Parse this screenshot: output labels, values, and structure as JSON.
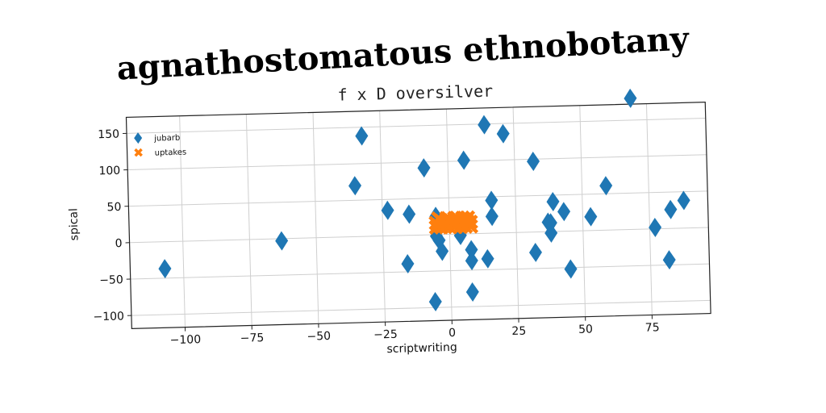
{
  "chart_data": {
    "type": "scatter",
    "suptitle": "agnathostomatous ethnobotany",
    "title": "f x D oversilver",
    "xlabel": "scriptwriting",
    "ylabel": "spical",
    "xlim": [
      -120,
      97
    ],
    "ylim": [
      -118,
      172
    ],
    "xticks": [
      -100,
      -75,
      -50,
      -25,
      0,
      25,
      50,
      75
    ],
    "xtick_labels": [
      "−100",
      "−75",
      "−50",
      "−25",
      "0",
      "25",
      "50",
      "75"
    ],
    "yticks": [
      -100,
      -50,
      0,
      50,
      100,
      150
    ],
    "ytick_labels": [
      "−100",
      "−50",
      "0",
      "50",
      "100",
      "150"
    ],
    "grid": true,
    "legend_position": "top-left",
    "series": [
      {
        "name": "jubarb",
        "marker": "diamond",
        "color": "#1f77b4",
        "points": [
          [
            -107,
            -37
          ],
          [
            -63,
            -3
          ],
          [
            -35,
            70
          ],
          [
            -32,
            138
          ],
          [
            -23,
            35
          ],
          [
            -15,
            29
          ],
          [
            -16,
            -39
          ],
          [
            -9,
            92
          ],
          [
            -5,
            25
          ],
          [
            -5,
            -2
          ],
          [
            -4,
            -8
          ],
          [
            -3,
            -23
          ],
          [
            -6,
            -92
          ],
          [
            4,
            -2
          ],
          [
            6,
            101
          ],
          [
            8,
            -22
          ],
          [
            8,
            -37
          ],
          [
            8,
            -80
          ],
          [
            14,
            -35
          ],
          [
            14,
            149
          ],
          [
            16,
            45
          ],
          [
            16,
            23
          ],
          [
            21,
            136
          ],
          [
            32,
            97
          ],
          [
            32,
            -28
          ],
          [
            37,
            13
          ],
          [
            38,
            -2
          ],
          [
            38,
            12
          ],
          [
            39,
            41
          ],
          [
            43,
            27
          ],
          [
            45,
            -52
          ],
          [
            53,
            19
          ],
          [
            59,
            61
          ],
          [
            69,
            180
          ],
          [
            77,
            2
          ],
          [
            82,
            -43
          ],
          [
            83,
            26
          ],
          [
            88,
            38
          ]
        ]
      },
      {
        "name": "uptakes",
        "marker": "x",
        "color": "#ff7f0e",
        "points": [
          [
            -5,
            10
          ],
          [
            -5,
            16
          ],
          [
            -4,
            22
          ],
          [
            -3,
            10
          ],
          [
            -2,
            16
          ],
          [
            -1,
            22
          ],
          [
            0,
            10
          ],
          [
            1,
            16
          ],
          [
            2,
            22
          ],
          [
            2,
            10
          ],
          [
            3,
            16
          ],
          [
            3,
            22
          ],
          [
            4,
            10
          ],
          [
            5,
            16
          ],
          [
            5,
            22
          ],
          [
            6,
            10
          ],
          [
            7,
            16
          ],
          [
            7,
            22
          ],
          [
            8,
            10
          ],
          [
            8,
            16
          ],
          [
            -4,
            13
          ],
          [
            -1,
            13
          ],
          [
            2,
            13
          ],
          [
            5,
            13
          ],
          [
            0,
            19
          ],
          [
            6,
            19
          ],
          [
            -3,
            19
          ]
        ]
      }
    ]
  }
}
